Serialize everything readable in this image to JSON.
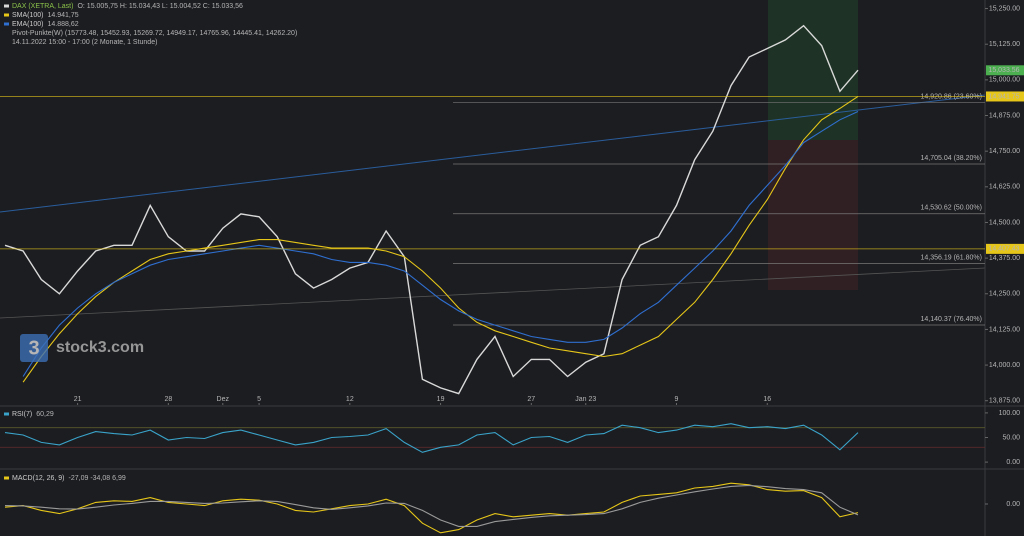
{
  "chart_data": [
    {
      "type": "line",
      "legend_extra": [
        "Pivot-Punkte(W)  (15773.48, 15452.93, 15269.72, 14949.17, 14765.96, 14445.41, 14262.20)",
        "14.11.2022 15:00 - 17:00  (2 Monate, 1 Stunde)"
      ],
      "watermark": {
        "glyph": "3",
        "text": "stock3.com"
      },
      "xlim": [
        0,
        47
      ],
      "xticks": [
        {
          "value": 4,
          "label": "21"
        },
        {
          "value": 9,
          "label": "28"
        },
        {
          "value": 12,
          "label": "Dez"
        },
        {
          "value": 14,
          "label": "5"
        },
        {
          "value": 19,
          "label": "12"
        },
        {
          "value": 24,
          "label": "19"
        },
        {
          "value": 29,
          "label": "27"
        },
        {
          "value": 32,
          "label": "Jan 23"
        },
        {
          "value": 37,
          "label": "9"
        },
        {
          "value": 42,
          "label": "16"
        }
      ],
      "ylim": [
        13860,
        15280
      ],
      "yticks": [
        {
          "value": 15250,
          "label": "15,250.00"
        },
        {
          "value": 15125,
          "label": "15,125.00"
        },
        {
          "value": 15000,
          "label": "15,000.00"
        },
        {
          "value": 14875,
          "label": "14,875.00"
        },
        {
          "value": 14750,
          "label": "14,750.00"
        },
        {
          "value": 14625,
          "label": "14,625.00"
        },
        {
          "value": 14500,
          "label": "14,500.00"
        },
        {
          "value": 14375,
          "label": "14,375.00"
        },
        {
          "value": 14250,
          "label": "14,250.00"
        },
        {
          "value": 14125,
          "label": "14,125.00"
        },
        {
          "value": 14000,
          "label": "14,000.00"
        },
        {
          "value": 13875,
          "label": "13,875.00"
        }
      ],
      "series": [
        {
          "name": "DAX (XETRA, Last)",
          "legend_text": "O: 15.005,75  H: 15.034,43  L: 15.004,52  C: 15.033,56",
          "color": "#d9d9d9",
          "values": [
            14420,
            14400,
            14300,
            14250,
            14330,
            14400,
            14420,
            14420,
            14560,
            14450,
            14400,
            14400,
            14480,
            14530,
            14520,
            14450,
            14320,
            14270,
            14300,
            14340,
            14360,
            14470,
            14380,
            13950,
            13920,
            13900,
            14020,
            14100,
            13960,
            14020,
            14020,
            13960,
            14010,
            14040,
            14300,
            14420,
            14450,
            14560,
            14720,
            14820,
            14980,
            15080,
            15110,
            15140,
            15190,
            15120,
            14960,
            15034
          ]
        },
        {
          "name": "SMA(100)",
          "legend_text": "14.941,75",
          "color": "#e6c619",
          "values": [
            null,
            13940,
            14030,
            14110,
            14180,
            14240,
            14290,
            14330,
            14370,
            14390,
            14400,
            14410,
            14420,
            14430,
            14440,
            14440,
            14430,
            14420,
            14410,
            14410,
            14410,
            14400,
            14380,
            14330,
            14270,
            14200,
            14150,
            14120,
            14100,
            14080,
            14060,
            14050,
            14040,
            14030,
            14040,
            14070,
            14100,
            14160,
            14220,
            14300,
            14390,
            14490,
            14580,
            14690,
            14790,
            14860,
            14900,
            14942
          ]
        },
        {
          "name": "EMA(100)",
          "legend_text": "14.888,62",
          "color": "#2f6fd0",
          "values": [
            null,
            13960,
            14060,
            14140,
            14200,
            14250,
            14290,
            14320,
            14350,
            14370,
            14380,
            14390,
            14400,
            14410,
            14420,
            14410,
            14400,
            14390,
            14370,
            14360,
            14360,
            14350,
            14330,
            14280,
            14230,
            14190,
            14160,
            14140,
            14120,
            14100,
            14090,
            14080,
            14080,
            14090,
            14130,
            14180,
            14220,
            14280,
            14340,
            14400,
            14470,
            14560,
            14630,
            14700,
            14780,
            14820,
            14860,
            14889
          ]
        }
      ],
      "price_markers": [
        {
          "value": 15033.56,
          "label": "15,033.56",
          "color": "#4caf50"
        },
        {
          "value": 14941.75,
          "label": "14,941.75",
          "color": "#e6c619"
        },
        {
          "value": 14407.43,
          "label": "14,407.43",
          "color": "#e6c619"
        }
      ],
      "fib_levels": [
        {
          "value": 14920.86,
          "label": "14,920.86 (23.60%)"
        },
        {
          "value": 14705.04,
          "label": "14,705.04 (38.20%)"
        },
        {
          "value": 14530.62,
          "label": "14,530.62 (50.00%)"
        },
        {
          "value": 14356.19,
          "label": "14,356.19 (61.80%)"
        },
        {
          "value": 14140.37,
          "label": "14,140.37 (76.40%)"
        }
      ]
    },
    {
      "type": "line",
      "ylim": [
        -10,
        110
      ],
      "yticks": [
        {
          "value": 100,
          "label": "100.00"
        },
        {
          "value": 50,
          "label": "50.00"
        },
        {
          "value": 0,
          "label": "0.00"
        }
      ],
      "levels": [
        70,
        30
      ],
      "series": [
        {
          "name": "RSI(7)",
          "legend_text": "60,29",
          "color": "#3aa3c9",
          "values": [
            60,
            55,
            40,
            35,
            50,
            62,
            58,
            55,
            65,
            45,
            50,
            48,
            60,
            65,
            55,
            45,
            35,
            40,
            50,
            52,
            55,
            68,
            40,
            20,
            30,
            35,
            55,
            60,
            35,
            50,
            52,
            40,
            55,
            58,
            75,
            70,
            60,
            65,
            75,
            72,
            78,
            70,
            72,
            68,
            75,
            55,
            25,
            60
          ]
        }
      ]
    },
    {
      "type": "line",
      "ylim": [
        -100,
        100
      ],
      "yticks": [
        {
          "value": 0,
          "label": "0.00"
        }
      ],
      "series": [
        {
          "name": "MACD(12, 26, 9)",
          "legend_text": "-27,09  -34,08  6,99",
          "color": "#e6c619",
          "values": [
            -10,
            -5,
            -20,
            -30,
            -15,
            5,
            10,
            8,
            20,
            5,
            0,
            -5,
            10,
            15,
            12,
            0,
            -20,
            -25,
            -15,
            -5,
            0,
            15,
            -5,
            -60,
            -90,
            -80,
            -50,
            -30,
            -40,
            -35,
            -30,
            -35,
            -30,
            -25,
            5,
            25,
            30,
            35,
            50,
            55,
            65,
            60,
            45,
            40,
            42,
            20,
            -40,
            -27
          ]
        },
        {
          "color": "#9a9a9a",
          "values": [
            -5,
            -6,
            -10,
            -15,
            -16,
            -10,
            -3,
            2,
            8,
            8,
            5,
            2,
            3,
            7,
            10,
            8,
            -2,
            -12,
            -17,
            -12,
            -6,
            3,
            2,
            -20,
            -50,
            -70,
            -70,
            -55,
            -48,
            -42,
            -37,
            -35,
            -33,
            -30,
            -15,
            5,
            18,
            28,
            38,
            47,
            55,
            58,
            54,
            48,
            45,
            35,
            -10,
            -34
          ]
        }
      ]
    }
  ]
}
